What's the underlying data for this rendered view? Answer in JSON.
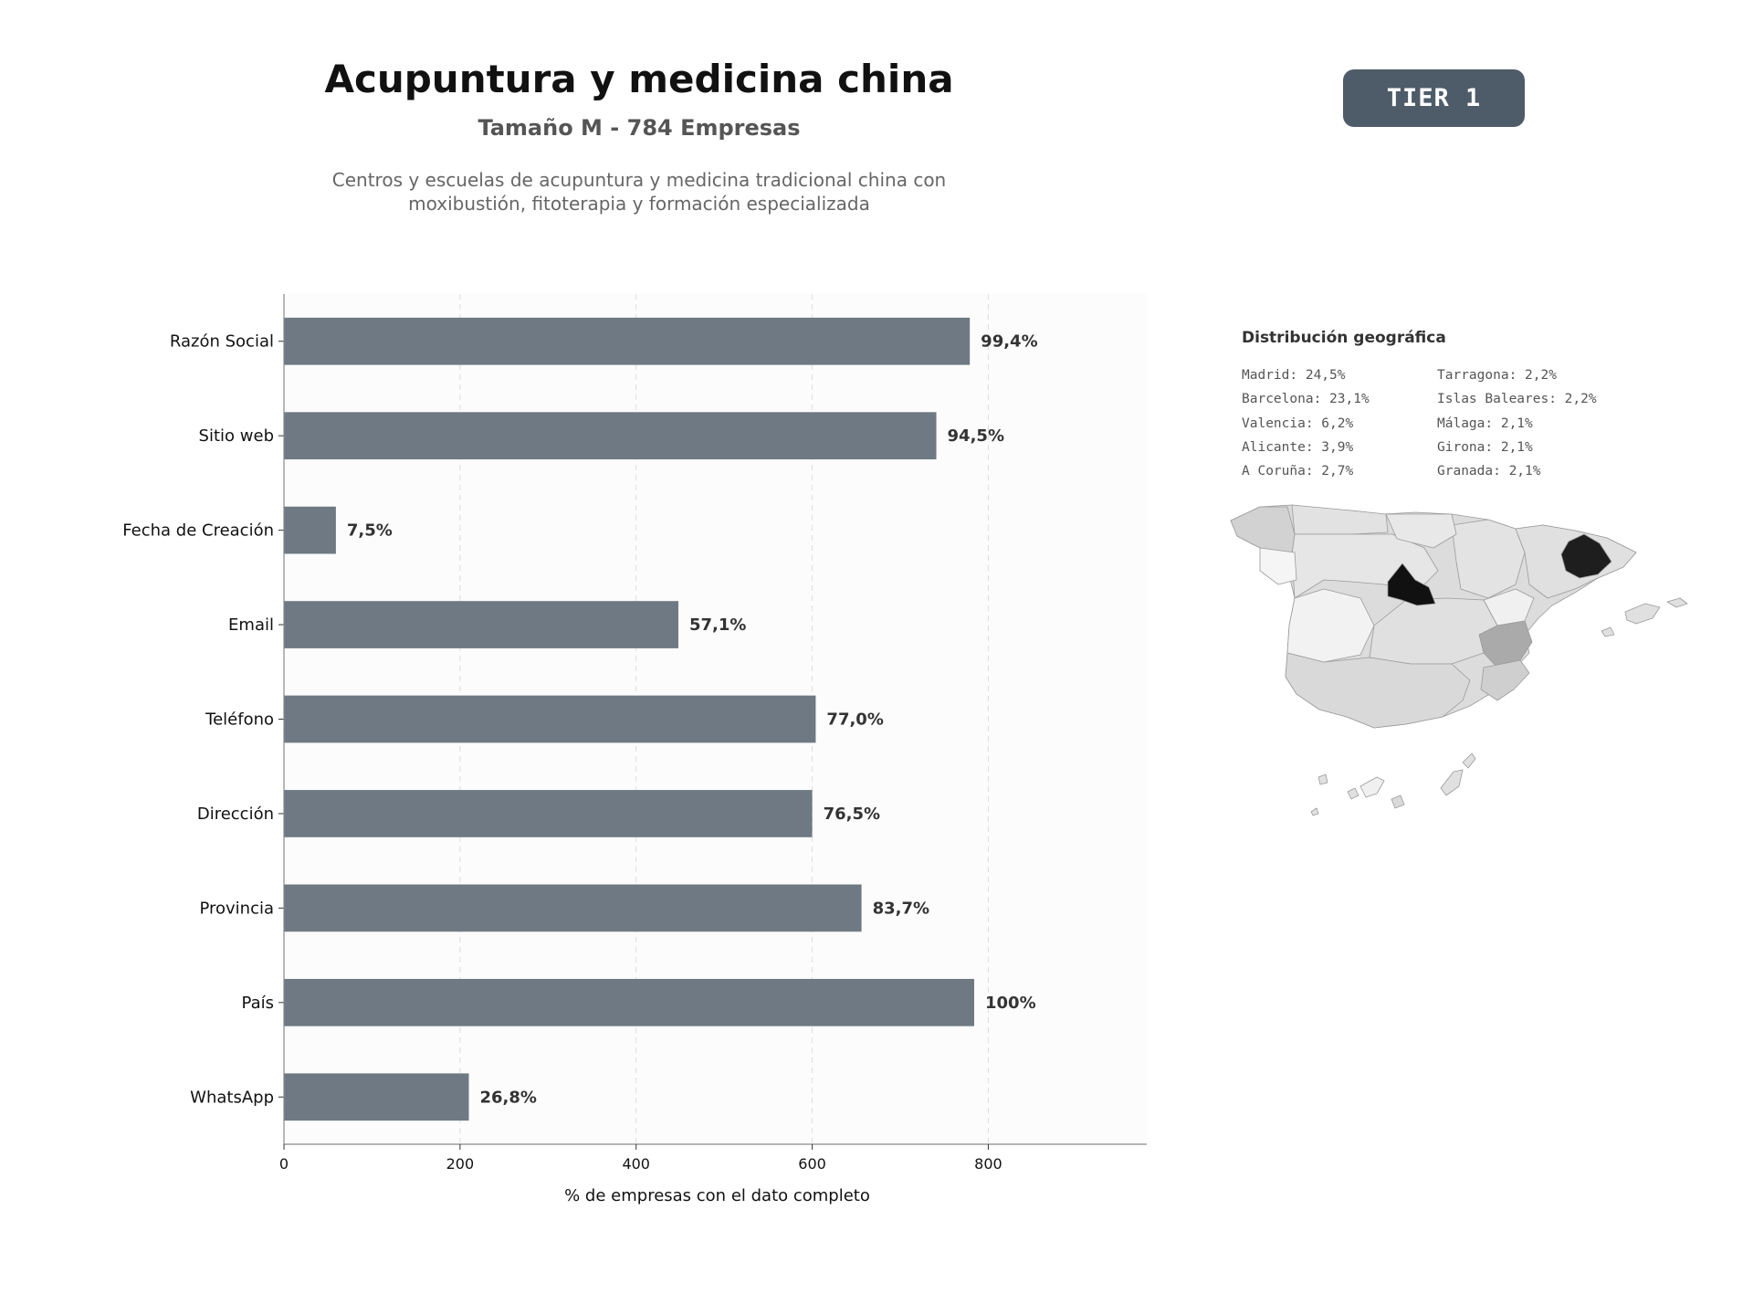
{
  "header": {
    "title": "Acupuntura y medicina china",
    "subtitle": "Tamaño M - 784 Empresas",
    "description_line1": "Centros y escuelas de acupuntura y medicina tradicional china con",
    "description_line2": "moxibustión, fitoterapia y formación especializada",
    "tier": "TIER 1"
  },
  "chart_data": {
    "type": "bar",
    "orientation": "horizontal",
    "categories": [
      "Razón Social",
      "Sitio web",
      "Fecha de Creación",
      "Email",
      "Teléfono",
      "Dirección",
      "Provincia",
      "País",
      "WhatsApp"
    ],
    "values": [
      779,
      741,
      59,
      448,
      604,
      600,
      656,
      784,
      210
    ],
    "data_labels": [
      "99,4%",
      "94,5%",
      "7,5%",
      "57,1%",
      "77,0%",
      "76,5%",
      "83,7%",
      "100%",
      "26,8%"
    ],
    "x_ticks": [
      0,
      200,
      400,
      600,
      800
    ],
    "xlabel": "% de empresas con el dato completo",
    "ylabel": "",
    "xlim": [
      0,
      980
    ],
    "grid": "vertical dashed",
    "bar_color": "#6e7983"
  },
  "geo": {
    "title": "Distribución geográfica",
    "left": [
      "Madrid: 24,5%",
      "Barcelona: 23,1%",
      "Valencia: 6,2%",
      "Alicante: 3,9%",
      "A Coruña: 2,7%"
    ],
    "right": [
      "Tarragona: 2,2%",
      "Islas Baleares: 2,2%",
      "Málaga: 2,1%",
      "Girona: 2,1%",
      "Granada: 2,1%"
    ]
  }
}
